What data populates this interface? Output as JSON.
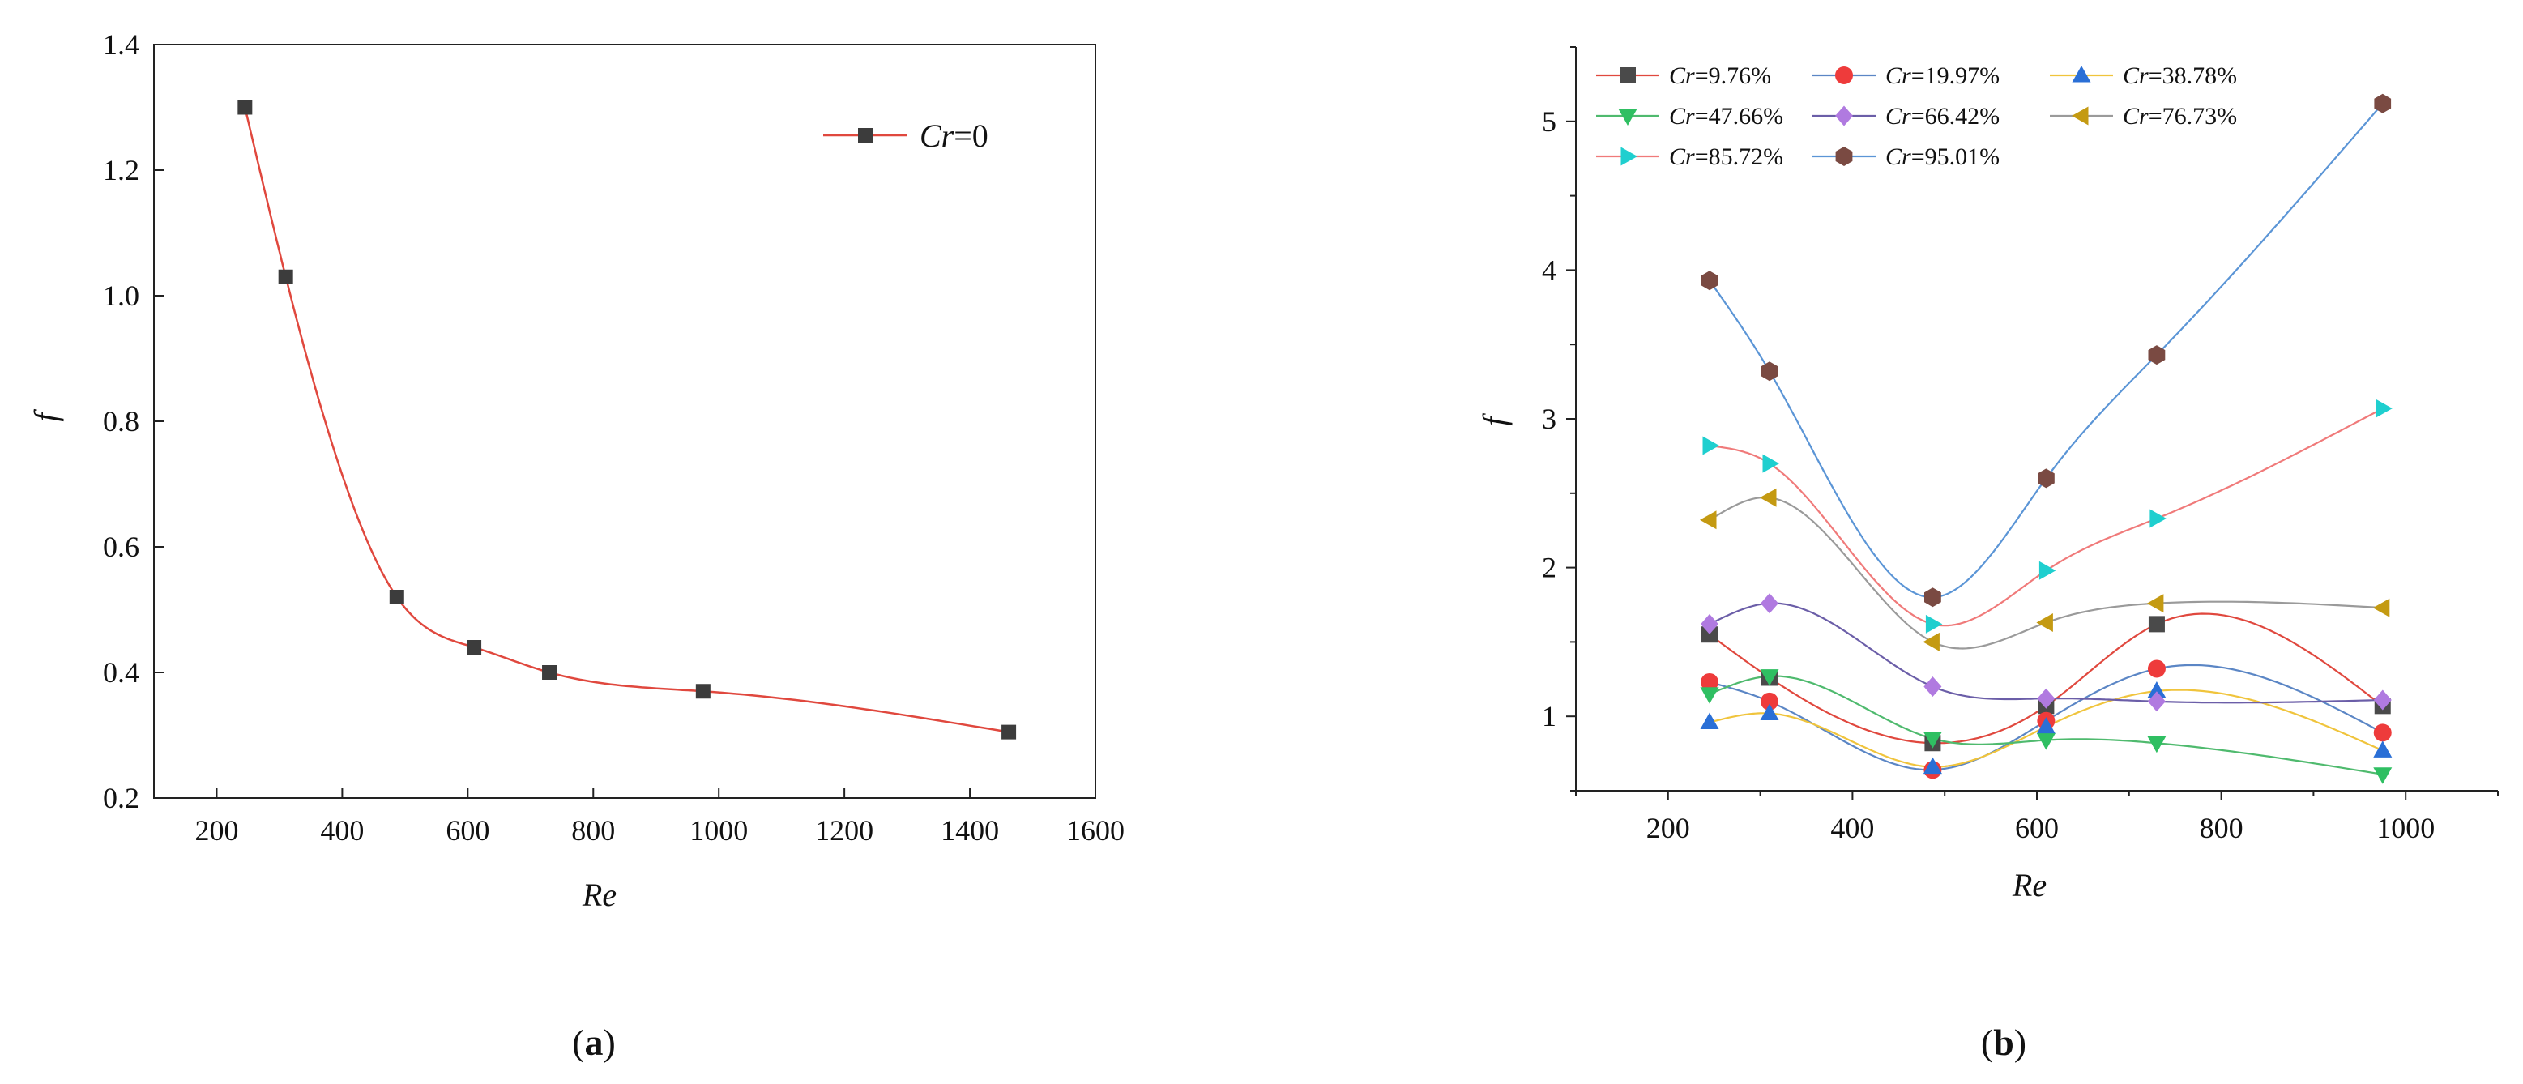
{
  "chart_data": [
    {
      "type": "line",
      "panel": "a",
      "caption_open": "(",
      "caption_letter": "a",
      "caption_close": ")",
      "xlabel": "Re",
      "ylabel": "f",
      "xlim": [
        100,
        1600
      ],
      "ylim": [
        0.2,
        1.4
      ],
      "xticks": [
        200,
        400,
        600,
        800,
        1000,
        1200,
        1400,
        1600
      ],
      "yticks": [
        0.2,
        0.4,
        0.6,
        0.8,
        1.0,
        1.2,
        1.4
      ],
      "ytick_labels": [
        "0.2",
        "0.4",
        "0.6",
        "0.8",
        "1.0",
        "1.2",
        "1.4"
      ],
      "legend_position": "top-right",
      "series": [
        {
          "name_italic": "Cr",
          "name_rest": "=0",
          "line_color": "#e0483e",
          "marker": "square",
          "marker_color": "#3c3c3c",
          "x": [
            245,
            310,
            487,
            610,
            730,
            975,
            1462
          ],
          "y": [
            1.3,
            1.03,
            0.52,
            0.44,
            0.4,
            0.37,
            0.305
          ]
        }
      ]
    },
    {
      "type": "line",
      "panel": "b",
      "caption_open": "(",
      "caption_letter": "b",
      "caption_close": ")",
      "xlabel": "Re",
      "ylabel": "f",
      "xlim": [
        100,
        1100
      ],
      "ylim": [
        0.5,
        5.5
      ],
      "xticks": [
        200,
        400,
        600,
        800,
        1000
      ],
      "yticks": [
        1,
        2,
        3,
        4,
        5
      ],
      "ytick_labels": [
        "1",
        "2",
        "3",
        "4",
        "5"
      ],
      "legend_position": "top-left",
      "x": [
        245,
        310,
        487,
        610,
        730,
        975
      ],
      "series": [
        {
          "name_italic": "Cr",
          "name_rest": "=9.76%",
          "line_color": "#e0483e",
          "marker": "square",
          "marker_color": "#4a4a4a",
          "y": [
            1.55,
            1.26,
            0.82,
            1.07,
            1.62,
            1.07
          ]
        },
        {
          "name_italic": "Cr",
          "name_rest": "=19.97%",
          "line_color": "#5b86c5",
          "marker": "circle",
          "marker_color": "#ee3b3b",
          "y": [
            1.23,
            1.1,
            0.64,
            0.97,
            1.32,
            0.89
          ]
        },
        {
          "name_italic": "Cr",
          "name_rest": "=38.78%",
          "line_color": "#f0c43c",
          "marker": "triangle-up",
          "marker_color": "#2a6fd6",
          "y": [
            0.96,
            1.02,
            0.66,
            0.93,
            1.17,
            0.77
          ]
        },
        {
          "name_italic": "Cr",
          "name_rest": "=47.66%",
          "line_color": "#4fba6e",
          "marker": "triangle-down",
          "marker_color": "#2fbf62",
          "y": [
            1.15,
            1.27,
            0.85,
            0.84,
            0.82,
            0.61
          ]
        },
        {
          "name_italic": "Cr",
          "name_rest": "=66.42%",
          "line_color": "#6b5ea8",
          "marker": "diamond",
          "marker_color": "#b07ae0",
          "y": [
            1.62,
            1.76,
            1.2,
            1.12,
            1.1,
            1.11
          ]
        },
        {
          "name_italic": "Cr",
          "name_rest": "=76.73%",
          "line_color": "#9a9a9a",
          "marker": "triangle-left",
          "marker_color": "#c49a12",
          "y": [
            2.32,
            2.47,
            1.5,
            1.63,
            1.76,
            1.73
          ]
        },
        {
          "name_italic": "Cr",
          "name_rest": "=85.72%",
          "line_color": "#f07a7a",
          "marker": "triangle-right",
          "marker_color": "#1fcfcf",
          "y": [
            2.82,
            2.7,
            1.62,
            1.98,
            2.33,
            3.07
          ]
        },
        {
          "name_italic": "Cr",
          "name_rest": "=95.01%",
          "line_color": "#5b95d6",
          "marker": "hexagon",
          "marker_color": "#7a4a42",
          "y": [
            3.93,
            3.32,
            1.8,
            2.6,
            3.43,
            5.12
          ]
        }
      ]
    }
  ]
}
